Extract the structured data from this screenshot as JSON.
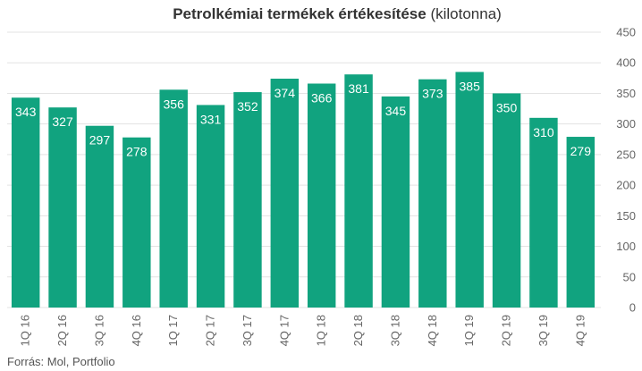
{
  "chart_data": {
    "type": "bar",
    "title": "Petrolkémiai termékek értékesítése",
    "subtitle": "(kilotonna)",
    "xlabel": "",
    "ylabel": "",
    "ylim": [
      0,
      450
    ],
    "yticks": [
      "0",
      "50",
      "100",
      "150",
      "200",
      "250",
      "300",
      "350",
      "400",
      "450"
    ],
    "y_axis_side": "right",
    "grid": true,
    "legend": "none",
    "categories": [
      "1Q 16",
      "2Q 16",
      "3Q 16",
      "4Q 16",
      "1Q 17",
      "2Q 17",
      "3Q 17",
      "4Q 17",
      "1Q 18",
      "2Q 18",
      "3Q 18",
      "4Q 18",
      "1Q 19",
      "2Q 19",
      "3Q 19",
      "4Q 19"
    ],
    "values": [
      343,
      327,
      297,
      278,
      356,
      331,
      352,
      374,
      366,
      381,
      345,
      373,
      385,
      350,
      310,
      279
    ],
    "colors": {
      "bar": "#11a37f",
      "grid": "#e3e3e3",
      "axis_text": "#666666",
      "label": "#ffffff"
    }
  },
  "source": "Forrás: Mol, Portfolio"
}
